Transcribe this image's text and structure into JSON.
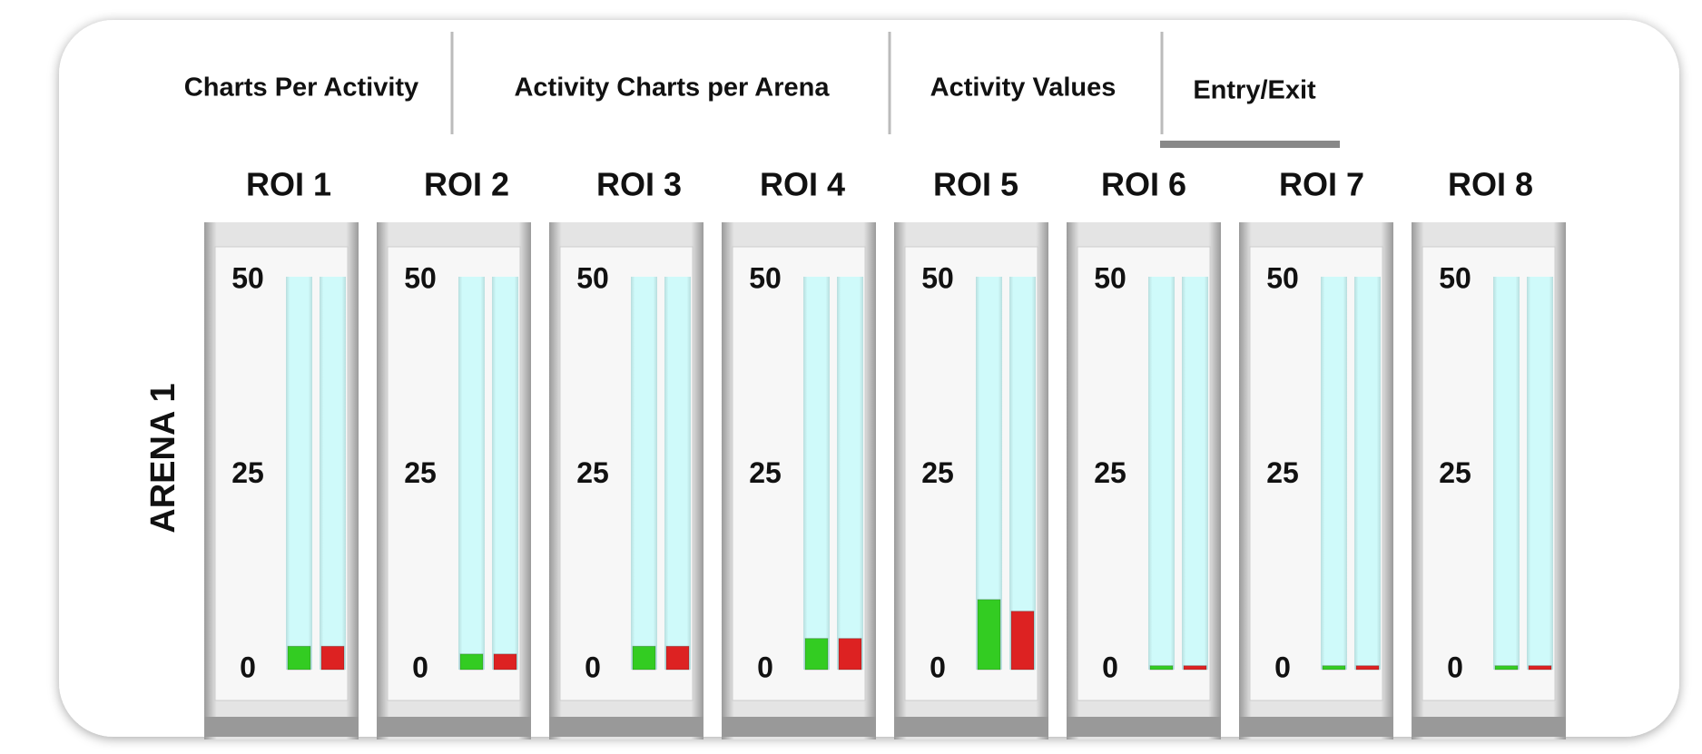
{
  "tabs": [
    "Charts Per Activity",
    "Activity Charts per Arena",
    "Activity Values",
    "Entry/Exit"
  ],
  "active_tab": 3,
  "arena_label": "ARENA 1",
  "chart_data": [
    {
      "type": "bar",
      "title": "ROI 1",
      "values": [
        3,
        3
      ],
      "colors": [
        "#33cc22",
        "#dd2222"
      ],
      "ylim": [
        0,
        50
      ],
      "yticks": [
        0,
        25,
        50
      ]
    },
    {
      "type": "bar",
      "title": "ROI 2",
      "values": [
        2,
        2
      ],
      "colors": [
        "#33cc22",
        "#dd2222"
      ],
      "ylim": [
        0,
        50
      ],
      "yticks": [
        0,
        25,
        50
      ]
    },
    {
      "type": "bar",
      "title": "ROI 3",
      "values": [
        3,
        3
      ],
      "colors": [
        "#33cc22",
        "#dd2222"
      ],
      "ylim": [
        0,
        50
      ],
      "yticks": [
        0,
        25,
        50
      ]
    },
    {
      "type": "bar",
      "title": "ROI 4",
      "values": [
        4,
        4
      ],
      "colors": [
        "#33cc22",
        "#dd2222"
      ],
      "ylim": [
        0,
        50
      ],
      "yticks": [
        0,
        25,
        50
      ]
    },
    {
      "type": "bar",
      "title": "ROI 5",
      "values": [
        9,
        7.5
      ],
      "colors": [
        "#33cc22",
        "#dd2222"
      ],
      "ylim": [
        0,
        50
      ],
      "yticks": [
        0,
        25,
        50
      ]
    },
    {
      "type": "bar",
      "title": "ROI 6",
      "values": [
        0.5,
        0.5
      ],
      "colors": [
        "#33cc22",
        "#dd2222"
      ],
      "ylim": [
        0,
        50
      ],
      "yticks": [
        0,
        25,
        50
      ]
    },
    {
      "type": "bar",
      "title": "ROI 7",
      "values": [
        0.5,
        0.5
      ],
      "colors": [
        "#33cc22",
        "#dd2222"
      ],
      "ylim": [
        0,
        50
      ],
      "yticks": [
        0,
        25,
        50
      ]
    },
    {
      "type": "bar",
      "title": "ROI 8",
      "values": [
        0.5,
        0.5
      ],
      "colors": [
        "#33cc22",
        "#dd2222"
      ],
      "ylim": [
        0,
        50
      ],
      "yticks": [
        0,
        25,
        50
      ]
    }
  ]
}
